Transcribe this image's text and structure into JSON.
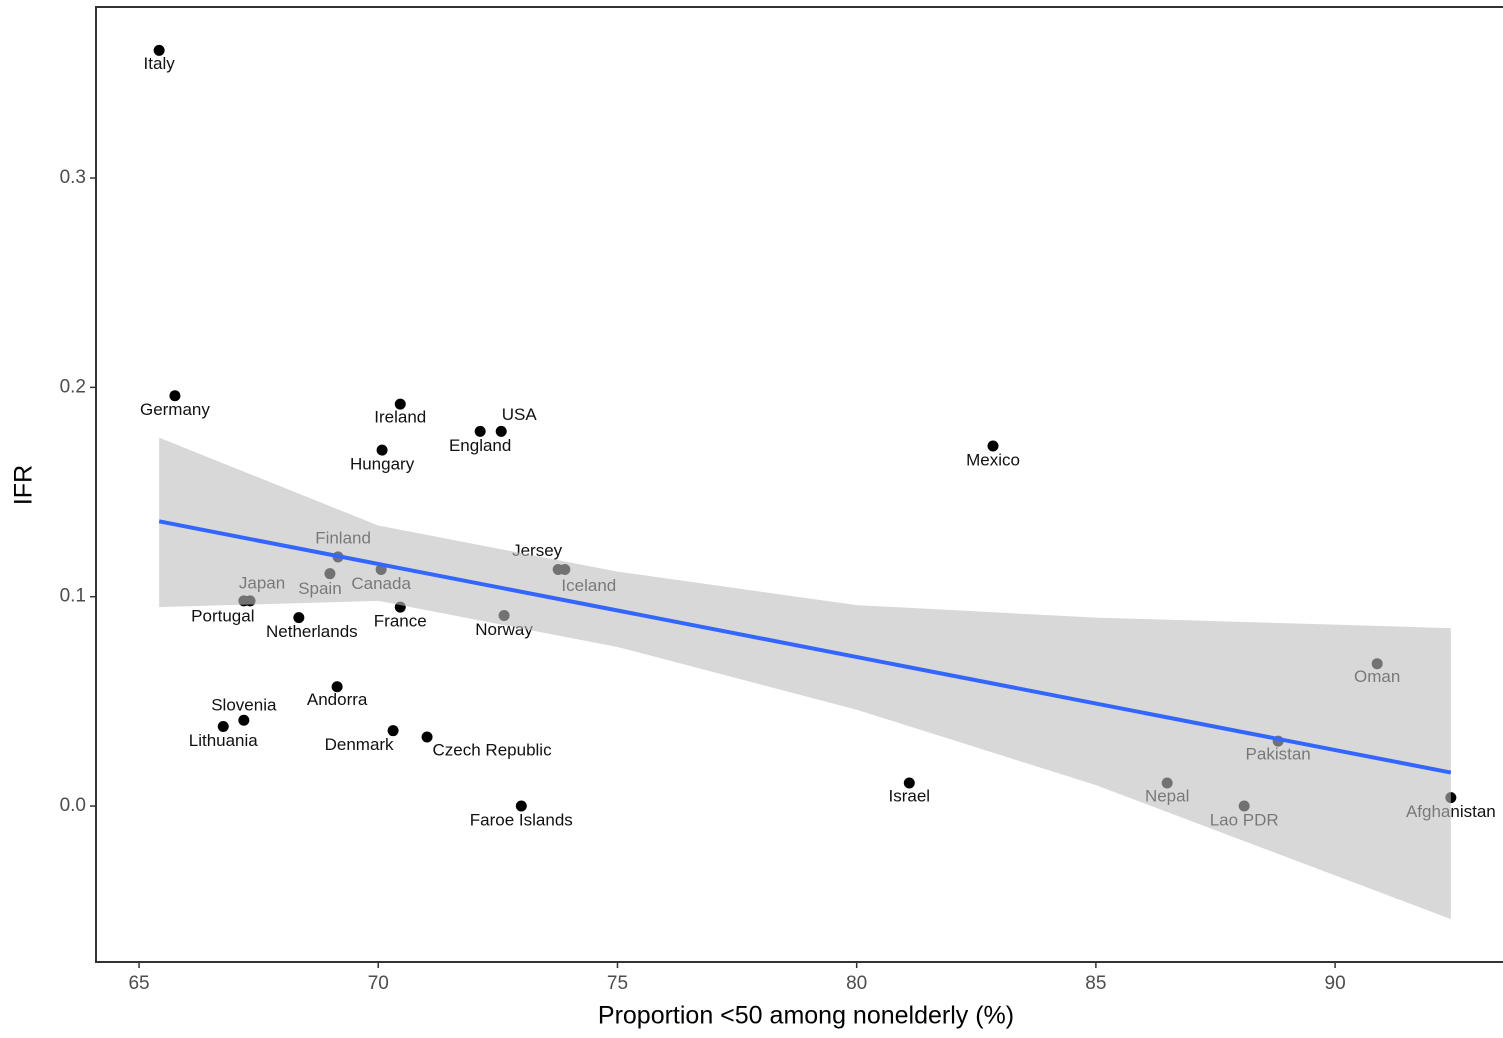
{
  "chart_data": {
    "type": "scatter",
    "x_label": "Proportion <50 among nonelderly (%)",
    "y_label": "IFR",
    "xlim": [
      64.1,
      93.51
    ],
    "ylim": [
      -0.0745,
      0.3817
    ],
    "xticks": [
      65,
      70,
      75,
      80,
      85,
      90
    ],
    "yticks": [
      {
        "value": 0,
        "label": "0.0"
      },
      0.1,
      0.2,
      0.3
    ],
    "color": "#000000",
    "point_labels": [
      "Italy",
      "Germany",
      "Ireland",
      "USA",
      "England",
      "Hungary",
      "Mexico",
      "Finland",
      "Jersey",
      "Iceland",
      "Spain",
      "Canada",
      "Japan",
      "Portugal",
      "Netherlands",
      "France",
      "Norway",
      "Oman",
      "Andorra",
      "Slovenia",
      "Lithuania",
      "Denmark",
      "Czech Republic",
      "Pakistan",
      "Israel",
      "Nepal",
      "Faroe Islands",
      "Lao PDR",
      "Afghanistan"
    ],
    "x": [
      65.42,
      65.75,
      70.46,
      72.57,
      72.13,
      70.08,
      82.85,
      69.16,
      73.76,
      73.9,
      68.99,
      70.06,
      67.32,
      67.19,
      68.34,
      70.46,
      72.63,
      90.88,
      69.14,
      67.19,
      66.76,
      70.31,
      71.02,
      88.81,
      81.1,
      86.49,
      72.99,
      88.1,
      92.42
    ],
    "values": [
      0.361,
      0.196,
      0.192,
      0.179,
      0.179,
      0.17,
      0.172,
      0.119,
      0.113,
      0.113,
      0.111,
      0.113,
      0.098,
      0.098,
      0.09,
      0.095,
      0.091,
      0.068,
      0.057,
      0.041,
      0.038,
      0.036,
      0.033,
      0.031,
      0.011,
      0.011,
      0,
      0,
      0.004
    ],
    "fit": {
      "color": "#3366ff",
      "x": [
        65.42,
        92.42
      ],
      "values": [
        0.136,
        0.016
      ]
    },
    "band": {
      "color": "#bebebe",
      "x": [
        65.42,
        70,
        75,
        80,
        85,
        92.42
      ],
      "upper": [
        0.176,
        0.134,
        0.112,
        0.096,
        0.09,
        0.085
      ],
      "lower": [
        0.095,
        0.098,
        0.076,
        0.046,
        0.01,
        -0.054
      ]
    }
  }
}
